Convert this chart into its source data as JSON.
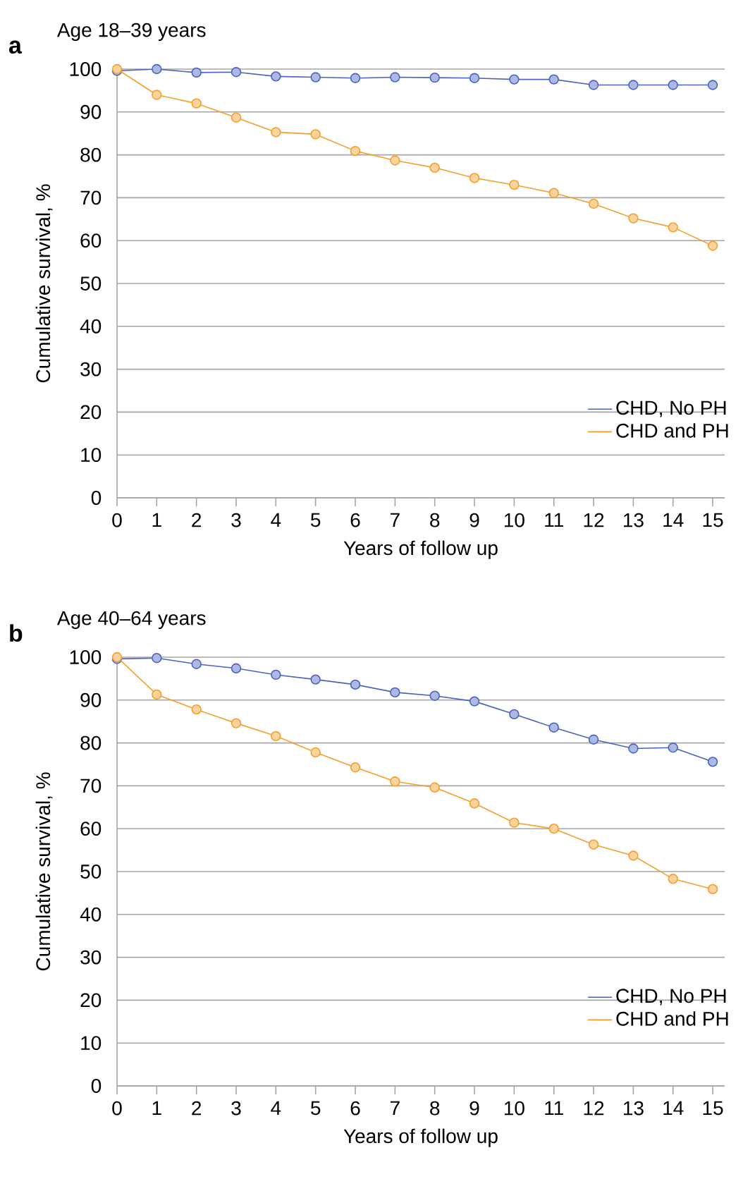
{
  "chart_data": [
    {
      "type": "line",
      "title": "Age 18–39 years",
      "annotations": [
        "a"
      ],
      "xlabel": "Years of follow up",
      "ylabel": "Cumulative survival, %",
      "x": [
        0,
        1,
        2,
        3,
        4,
        5,
        6,
        7,
        8,
        9,
        10,
        11,
        12,
        13,
        14,
        15
      ],
      "series": [
        {
          "name": "CHD, No PH",
          "color": "#4a63c0",
          "values": [
            99.6,
            100,
            99.2,
            99.3,
            98.3,
            98.1,
            97.9,
            98.1,
            98.0,
            97.9,
            97.6,
            97.6,
            96.3,
            96.3,
            96.3,
            96.3
          ]
        },
        {
          "name": "CHD and PH",
          "color": "#f59f2a",
          "values": [
            100,
            94.0,
            92.0,
            88.7,
            85.3,
            84.8,
            80.9,
            78.7,
            77.0,
            74.6,
            73.0,
            71.1,
            68.6,
            65.2,
            63.1,
            58.8
          ]
        }
      ],
      "xlim": [
        0,
        15.3
      ],
      "xticks": [
        0,
        1,
        2,
        3,
        4,
        5,
        6,
        7,
        8,
        9,
        10,
        11,
        12,
        13,
        14,
        15
      ],
      "ylim": [
        0,
        100
      ],
      "yticks": [
        0,
        10,
        20,
        30,
        40,
        50,
        60,
        70,
        80,
        90,
        100
      ],
      "grid": "y",
      "legend": "bottom right",
      "marker": "circle",
      "line_style": "solid"
    },
    {
      "type": "line",
      "title": "Age 40–64 years",
      "annotations": [
        "b"
      ],
      "xlabel": "Years of follow up",
      "ylabel": "Cumulative survival, %",
      "x": [
        0,
        1,
        2,
        3,
        4,
        5,
        6,
        7,
        8,
        9,
        10,
        11,
        12,
        13,
        14,
        15
      ],
      "series": [
        {
          "name": "CHD, No PH",
          "color": "#4a63c0",
          "values": [
            99.6,
            99.8,
            98.4,
            97.4,
            95.9,
            94.8,
            93.6,
            91.8,
            91.0,
            89.7,
            86.7,
            83.6,
            80.8,
            78.7,
            78.9,
            75.6
          ]
        },
        {
          "name": "CHD and PH",
          "color": "#f59f2a",
          "values": [
            100,
            91.3,
            87.8,
            84.6,
            81.6,
            77.8,
            74.3,
            71.0,
            69.6,
            65.9,
            61.4,
            60.0,
            56.3,
            53.7,
            48.3,
            45.9
          ]
        }
      ],
      "xlim": [
        0,
        15.3
      ],
      "xticks": [
        0,
        1,
        2,
        3,
        4,
        5,
        6,
        7,
        8,
        9,
        10,
        11,
        12,
        13,
        14,
        15
      ],
      "ylim": [
        0,
        100
      ],
      "yticks": [
        0,
        10,
        20,
        30,
        40,
        50,
        60,
        70,
        80,
        90,
        100
      ],
      "grid": "y",
      "legend": "bottom right",
      "marker": "circle",
      "line_style": "solid"
    }
  ]
}
